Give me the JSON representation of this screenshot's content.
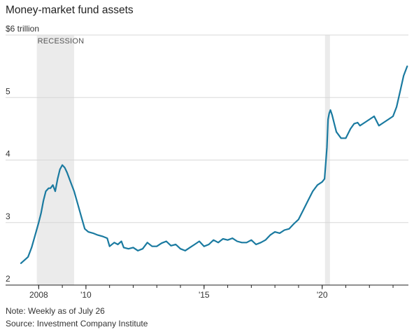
{
  "title": "Money-market fund assets",
  "note": "Note: Weekly as of July 26",
  "source": "Source: Investment Company Institute",
  "colors": {
    "line": "#1a7aa0",
    "recession": "#ebebeb",
    "grid": "#d8d8d8",
    "baseline": "#222222"
  },
  "chart_data": {
    "type": "line",
    "title": "Money-market fund assets",
    "ylabel": "",
    "ylim": [
      2,
      6
    ],
    "xlim": [
      2007.25,
      2023.65
    ],
    "yticks": [
      {
        "value": 6,
        "label": "$6 trillion"
      },
      {
        "value": 5,
        "label": "5"
      },
      {
        "value": 4,
        "label": "4"
      },
      {
        "value": 3,
        "label": "3"
      },
      {
        "value": 2,
        "label": "2"
      }
    ],
    "xticks": [
      {
        "value": 2008,
        "label": "2008"
      },
      {
        "value": 2010,
        "label": "'10"
      },
      {
        "value": 2015,
        "label": "'15"
      },
      {
        "value": 2020,
        "label": "'20"
      }
    ],
    "recessions": [
      {
        "start": 2007.92,
        "end": 2009.5,
        "label": "RECESSION"
      },
      {
        "start": 2020.12,
        "end": 2020.33,
        "label": ""
      }
    ],
    "grid": true,
    "series": [
      {
        "x": [
          2007.25,
          2007.4,
          2007.55,
          2007.7,
          2007.85,
          2008.0,
          2008.1,
          2008.2,
          2008.3,
          2008.42,
          2008.5,
          2008.6,
          2008.7,
          2008.8,
          2008.9,
          2009.0,
          2009.1,
          2009.2,
          2009.35,
          2009.5,
          2009.65,
          2009.8,
          2009.95,
          2010.1,
          2010.3,
          2010.5,
          2010.7,
          2010.9,
          2011.0,
          2011.2,
          2011.35,
          2011.5,
          2011.6,
          2011.8,
          2012.0,
          2012.2,
          2012.4,
          2012.6,
          2012.8,
          2013.0,
          2013.2,
          2013.4,
          2013.6,
          2013.8,
          2014.0,
          2014.2,
          2014.4,
          2014.6,
          2014.8,
          2015.0,
          2015.2,
          2015.4,
          2015.6,
          2015.8,
          2016.0,
          2016.2,
          2016.4,
          2016.6,
          2016.8,
          2017.0,
          2017.2,
          2017.4,
          2017.6,
          2017.8,
          2018.0,
          2018.2,
          2018.4,
          2018.6,
          2018.8,
          2019.0,
          2019.2,
          2019.4,
          2019.6,
          2019.8,
          2020.0,
          2020.1,
          2020.2,
          2020.25,
          2020.3,
          2020.35,
          2020.42,
          2020.5,
          2020.6,
          2020.8,
          2021.0,
          2021.2,
          2021.35,
          2021.5,
          2021.6,
          2021.8,
          2022.0,
          2022.2,
          2022.4,
          2022.6,
          2022.8,
          2023.0,
          2023.15,
          2023.3,
          2023.45,
          2023.6
        ],
        "y": [
          2.35,
          2.4,
          2.45,
          2.6,
          2.8,
          3.0,
          3.15,
          3.35,
          3.5,
          3.55,
          3.55,
          3.6,
          3.5,
          3.7,
          3.85,
          3.92,
          3.88,
          3.8,
          3.65,
          3.5,
          3.3,
          3.1,
          2.9,
          2.85,
          2.83,
          2.8,
          2.78,
          2.75,
          2.62,
          2.68,
          2.65,
          2.7,
          2.6,
          2.58,
          2.6,
          2.55,
          2.58,
          2.68,
          2.62,
          2.62,
          2.67,
          2.7,
          2.63,
          2.65,
          2.58,
          2.55,
          2.6,
          2.65,
          2.7,
          2.62,
          2.65,
          2.72,
          2.68,
          2.74,
          2.72,
          2.75,
          2.7,
          2.68,
          2.68,
          2.72,
          2.65,
          2.68,
          2.72,
          2.8,
          2.85,
          2.83,
          2.88,
          2.9,
          2.98,
          3.05,
          3.2,
          3.35,
          3.5,
          3.6,
          3.65,
          3.7,
          4.2,
          4.65,
          4.75,
          4.8,
          4.72,
          4.6,
          4.45,
          4.35,
          4.35,
          4.5,
          4.58,
          4.6,
          4.55,
          4.6,
          4.65,
          4.7,
          4.55,
          4.6,
          4.65,
          4.7,
          4.85,
          5.1,
          5.35,
          5.5
        ]
      }
    ]
  }
}
